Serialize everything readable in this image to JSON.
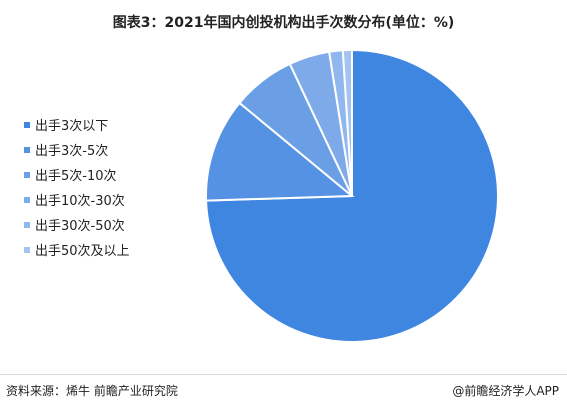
{
  "title": "图表3：2021年国内创投机构出手次数分布(单位：%)",
  "source": "资料来源：烯牛 前瞻产业研究院",
  "credit": "@前瞻经济学人APP",
  "colors": {
    "slices": [
      "#3f86e0",
      "#5592e3",
      "#6a9fe6",
      "#7eaaea",
      "#90b7ee",
      "#a3c3f1"
    ],
    "edge": "#ffffff"
  },
  "chart_data": {
    "type": "pie",
    "categories": [
      "出手3次以下",
      "出手3次-5次",
      "出手5次-10次",
      "出手10次-30次",
      "出手30次-50次",
      "出手50次及以上"
    ],
    "values": [
      74.5,
      11.5,
      7.0,
      4.5,
      1.5,
      1.0
    ],
    "legend_position": "left"
  }
}
